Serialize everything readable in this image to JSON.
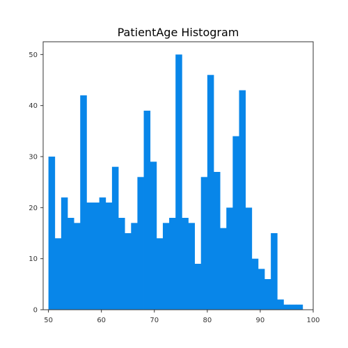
{
  "chart_data": {
    "type": "bar",
    "title": "PatientAge Histogram",
    "xlabel": "",
    "ylabel": "",
    "bar_color": "#0886e9",
    "xlim": [
      49,
      100
    ],
    "ylim": [
      0,
      52.5
    ],
    "xticks": [
      50,
      60,
      70,
      80,
      90,
      100
    ],
    "yticks": [
      0,
      10,
      20,
      30,
      40,
      50
    ],
    "grid": false,
    "bins": [
      {
        "x0": 50.0,
        "x1": 51.2,
        "value": 30
      },
      {
        "x0": 51.2,
        "x1": 52.4,
        "value": 14
      },
      {
        "x0": 52.4,
        "x1": 53.6,
        "value": 22
      },
      {
        "x0": 53.6,
        "x1": 54.8,
        "value": 18
      },
      {
        "x0": 54.8,
        "x1": 56.0,
        "value": 17
      },
      {
        "x0": 56.0,
        "x1": 57.2,
        "value": 42
      },
      {
        "x0": 57.2,
        "x1": 58.4,
        "value": 21
      },
      {
        "x0": 58.4,
        "x1": 59.6,
        "value": 21
      },
      {
        "x0": 59.6,
        "x1": 60.8,
        "value": 22
      },
      {
        "x0": 60.8,
        "x1": 62.0,
        "value": 21
      },
      {
        "x0": 62.0,
        "x1": 63.2,
        "value": 28
      },
      {
        "x0": 63.2,
        "x1": 64.4,
        "value": 18
      },
      {
        "x0": 64.4,
        "x1": 65.6,
        "value": 15
      },
      {
        "x0": 65.6,
        "x1": 66.8,
        "value": 17
      },
      {
        "x0": 66.8,
        "x1": 68.0,
        "value": 26
      },
      {
        "x0": 68.0,
        "x1": 69.2,
        "value": 39
      },
      {
        "x0": 69.2,
        "x1": 70.4,
        "value": 29
      },
      {
        "x0": 70.4,
        "x1": 71.6,
        "value": 14
      },
      {
        "x0": 71.6,
        "x1": 72.8,
        "value": 17
      },
      {
        "x0": 72.8,
        "x1": 74.0,
        "value": 18
      },
      {
        "x0": 74.0,
        "x1": 75.2,
        "value": 50
      },
      {
        "x0": 75.2,
        "x1": 76.4,
        "value": 18
      },
      {
        "x0": 76.4,
        "x1": 77.6,
        "value": 17
      },
      {
        "x0": 77.6,
        "x1": 78.8,
        "value": 9
      },
      {
        "x0": 78.8,
        "x1": 80.0,
        "value": 26
      },
      {
        "x0": 80.0,
        "x1": 81.2,
        "value": 46
      },
      {
        "x0": 81.2,
        "x1": 82.4,
        "value": 27
      },
      {
        "x0": 82.4,
        "x1": 83.6,
        "value": 16
      },
      {
        "x0": 83.6,
        "x1": 84.8,
        "value": 20
      },
      {
        "x0": 84.8,
        "x1": 86.0,
        "value": 34
      },
      {
        "x0": 86.0,
        "x1": 87.2,
        "value": 43
      },
      {
        "x0": 87.2,
        "x1": 88.4,
        "value": 20
      },
      {
        "x0": 88.4,
        "x1": 89.6,
        "value": 10
      },
      {
        "x0": 89.6,
        "x1": 90.8,
        "value": 8
      },
      {
        "x0": 90.8,
        "x1": 92.0,
        "value": 6
      },
      {
        "x0": 92.0,
        "x1": 93.2,
        "value": 15
      },
      {
        "x0": 93.2,
        "x1": 94.4,
        "value": 2
      },
      {
        "x0": 94.4,
        "x1": 95.6,
        "value": 1
      },
      {
        "x0": 95.6,
        "x1": 96.8,
        "value": 1
      },
      {
        "x0": 96.8,
        "x1": 98.0,
        "value": 1
      }
    ]
  }
}
